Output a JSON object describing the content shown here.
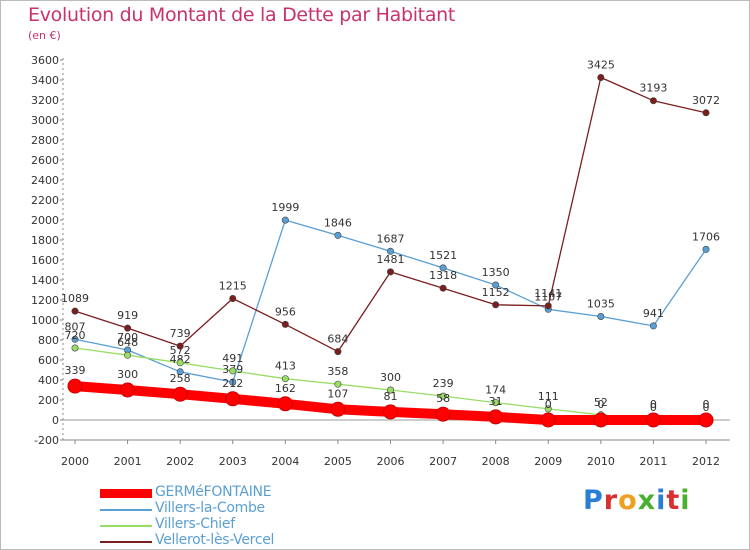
{
  "title": "Evolution du Montant de la Dette par Habitant",
  "unit_label": "(en €)",
  "logo": {
    "text": "Proxiti",
    "letter_colors": [
      "#2a7fd4",
      "#d83030",
      "#f0a020",
      "#4ab030",
      "#2a7fd4",
      "#d83030",
      "#4ab030"
    ]
  },
  "chart_data": {
    "type": "line",
    "x": [
      "2000",
      "2001",
      "2002",
      "2003",
      "2004",
      "2005",
      "2006",
      "2007",
      "2008",
      "2009",
      "2010",
      "2011",
      "2012"
    ],
    "ylim": [
      -200,
      3600
    ],
    "yticks": [
      "-200",
      "0",
      "200",
      "400",
      "600",
      "800",
      "1000",
      "1200",
      "1400",
      "1600",
      "1800",
      "2000",
      "2200",
      "2400",
      "2600",
      "2800",
      "3000",
      "3200",
      "3400",
      "3600"
    ],
    "grid": false,
    "legend_position": "bottom-left",
    "series": [
      {
        "name": "Villers-la-Combe",
        "color": "#5a9fd4",
        "values": [
          807,
          700,
          482,
          379,
          1999,
          1846,
          1687,
          1521,
          1350,
          1107,
          1035,
          941,
          1706
        ],
        "labels": [
          "807",
          "700",
          "482",
          "379",
          "1999",
          "1846",
          "1687",
          "1521",
          "1350",
          "1107",
          "1035",
          "941",
          "1706"
        ]
      },
      {
        "name": "Villers-Chief",
        "color": "#99dd66",
        "values": [
          720,
          648,
          572,
          491,
          413,
          358,
          300,
          239,
          174,
          111,
          52,
          0,
          0
        ],
        "labels": [
          "720",
          "648",
          "572",
          "491",
          "413",
          "358",
          "300",
          "239",
          "174",
          "111",
          "52",
          "0",
          "0"
        ]
      },
      {
        "name": "Vellerot-lès-Vercel",
        "color": "#7a1e1e",
        "values": [
          1089,
          919,
          739,
          1215,
          956,
          684,
          1481,
          1318,
          1152,
          1141,
          3425,
          3193,
          3072
        ],
        "labels": [
          "1089",
          "919",
          "739",
          "1215",
          "956",
          "684",
          "1481",
          "1318",
          "1152",
          "1141",
          "3425",
          "3193",
          "3072"
        ]
      },
      {
        "name": "GERMéFONTAINE",
        "color": "#ff0000",
        "values": [
          339,
          300,
          258,
          212,
          162,
          107,
          81,
          58,
          31,
          0,
          0,
          0,
          0
        ],
        "labels": [
          "339",
          "300",
          "258",
          "212",
          "162",
          "107",
          "81",
          "58",
          "31",
          "0",
          "0",
          "0",
          "0"
        ]
      }
    ]
  }
}
